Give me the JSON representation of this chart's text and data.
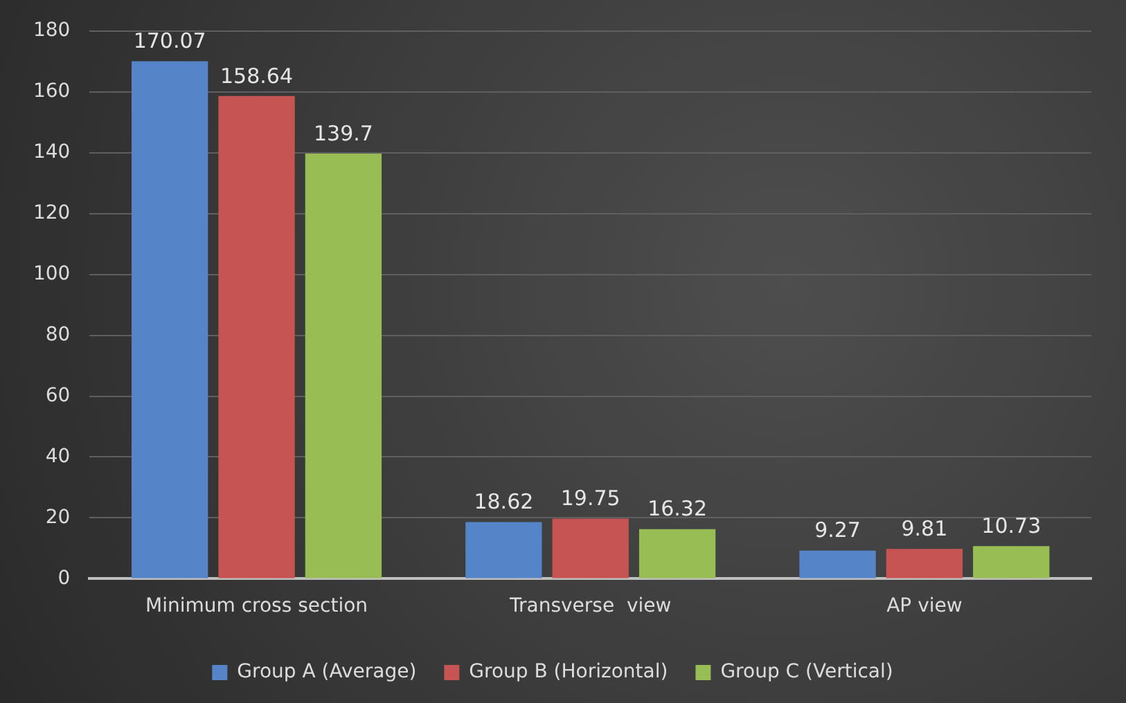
{
  "chart_data": {
    "type": "bar",
    "categories": [
      "Minimum cross section",
      "Transverse  view",
      "AP view"
    ],
    "series": [
      {
        "name": "Group A (Average)",
        "color": "#5585c8",
        "values": [
          170.07,
          18.62,
          9.27
        ]
      },
      {
        "name": "Group B (Horizontal)",
        "color": "#c65452",
        "values": [
          158.64,
          19.75,
          9.81
        ]
      },
      {
        "name": "Group C (Vertical)",
        "color": "#98bd55",
        "values": [
          139.7,
          16.32,
          10.73
        ]
      }
    ],
    "ylim": [
      0,
      180
    ],
    "yticks": [
      0,
      20,
      40,
      60,
      80,
      100,
      120,
      140,
      160,
      180
    ],
    "grid": "y",
    "legend": "bottom",
    "data_labels": true
  }
}
